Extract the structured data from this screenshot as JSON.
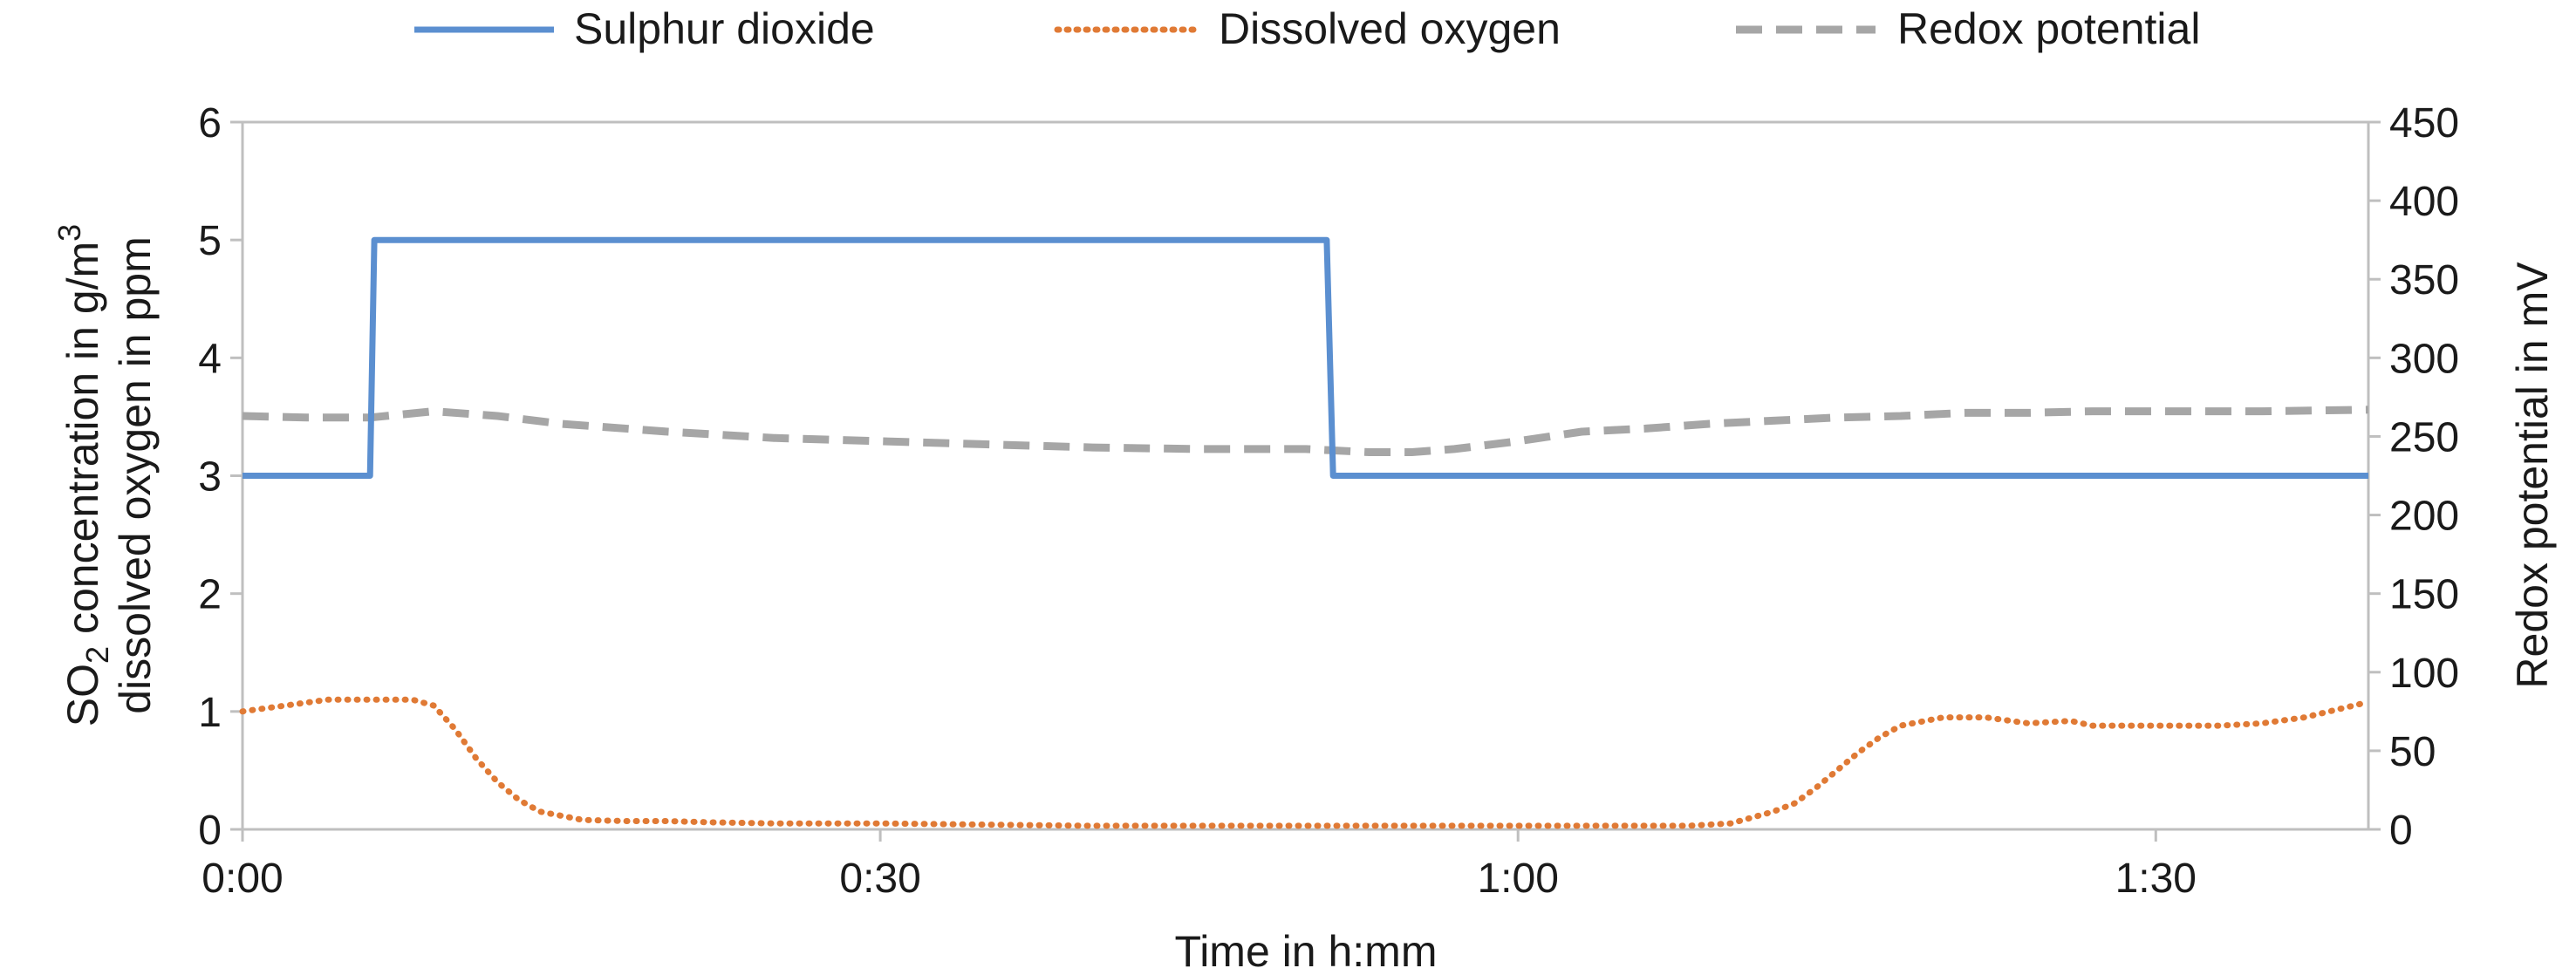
{
  "chart_data": {
    "type": "line",
    "title": "",
    "xlabel": "Time in h:mm",
    "ylabel_left_line1_prefix": "SO",
    "ylabel_left_line1_sub": "2",
    "ylabel_left_line1_mid": " concentration in g/m",
    "ylabel_left_line1_sup": "3",
    "ylabel_left_line2": "dissolved oxygen in ppm",
    "ylabel_right": "Redox potential in mV",
    "x_unit": "minutes",
    "xlim": [
      0,
      100
    ],
    "xticks": [
      0,
      30,
      60,
      90
    ],
    "xtick_labels": [
      "0:00",
      "0:30",
      "1:00",
      "1:30"
    ],
    "ylim_left": [
      0,
      6
    ],
    "yticks_left": [
      "0",
      "1",
      "2",
      "3",
      "4",
      "5",
      "6"
    ],
    "ylim_right": [
      0,
      450
    ],
    "yticks_right": [
      "0",
      "50",
      "100",
      "150",
      "200",
      "250",
      "300",
      "350",
      "400",
      "450"
    ],
    "grid": false,
    "legend_position": "top",
    "series": [
      {
        "name": "Sulphur dioxide",
        "axis": "left",
        "style": "solid",
        "color": "#5b8fd0",
        "x": [
          0,
          6,
          6.2,
          51,
          51.3,
          100
        ],
        "y": [
          3,
          3,
          5,
          5,
          3,
          3
        ]
      },
      {
        "name": "Dissolved oxygen",
        "axis": "left",
        "style": "dotted",
        "color": "#e07a35",
        "x": [
          0,
          2,
          4,
          6,
          8,
          9,
          10,
          11,
          12,
          13,
          14,
          16,
          18,
          20,
          22,
          25,
          30,
          35,
          40,
          45,
          50,
          55,
          60,
          65,
          68,
          70,
          71,
          72,
          73,
          74,
          75,
          76,
          77,
          78,
          80,
          82,
          84,
          86,
          87,
          88,
          90,
          93,
          95,
          97,
          100
        ],
        "y": [
          1.0,
          1.05,
          1.1,
          1.1,
          1.1,
          1.05,
          0.85,
          0.6,
          0.4,
          0.25,
          0.15,
          0.08,
          0.07,
          0.07,
          0.06,
          0.05,
          0.05,
          0.04,
          0.03,
          0.03,
          0.03,
          0.03,
          0.03,
          0.03,
          0.03,
          0.05,
          0.1,
          0.15,
          0.22,
          0.35,
          0.5,
          0.65,
          0.78,
          0.88,
          0.95,
          0.95,
          0.9,
          0.92,
          0.88,
          0.88,
          0.88,
          0.88,
          0.9,
          0.95,
          1.08
        ]
      },
      {
        "name": "Redox potential",
        "axis": "right",
        "style": "dashed",
        "color": "#a6a6a6",
        "x": [
          0,
          3,
          6,
          9,
          12,
          15,
          20,
          25,
          30,
          35,
          40,
          45,
          50,
          53,
          55,
          57,
          60,
          63,
          66,
          69,
          72,
          75,
          78,
          81,
          84,
          87,
          90,
          95,
          100
        ],
        "y": [
          263,
          262,
          262,
          266,
          263,
          258,
          253,
          249,
          247,
          245,
          243,
          242,
          242,
          240,
          240,
          242,
          247,
          253,
          255,
          258,
          260,
          262,
          263,
          265,
          265,
          266,
          266,
          266,
          267
        ]
      }
    ]
  }
}
